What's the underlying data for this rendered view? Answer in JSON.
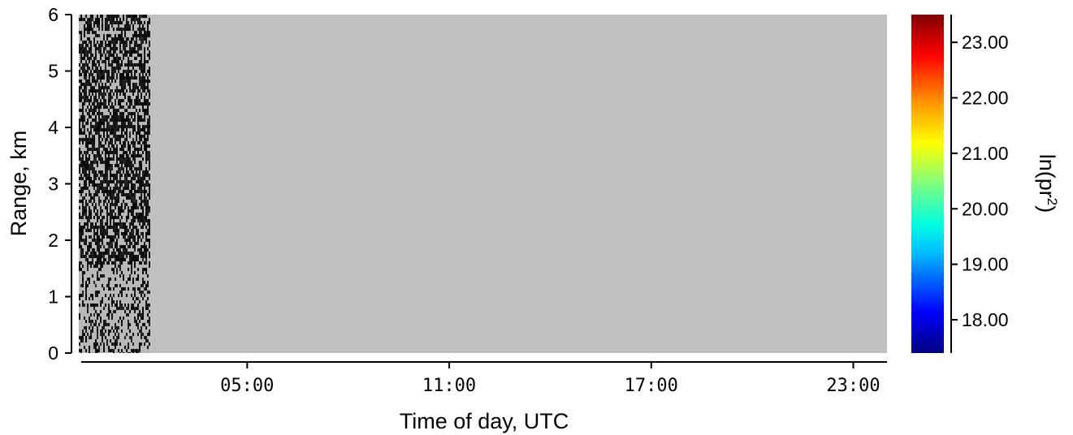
{
  "chart_data": {
    "type": "heatmap",
    "title": "",
    "xlabel": "Time of day, UTC",
    "ylabel": "Range, km",
    "x_axis": {
      "unit": "hours UTC",
      "range": [
        0.0,
        24.0
      ],
      "ticks": [
        {
          "value": 5,
          "label": "05:00"
        },
        {
          "value": 11,
          "label": "11:00"
        },
        {
          "value": 17,
          "label": "17:00"
        },
        {
          "value": 23,
          "label": "23:00"
        }
      ]
    },
    "y_axis": {
      "unit": "km",
      "range": [
        0,
        6
      ],
      "ticks": [
        {
          "value": 0,
          "label": "0"
        },
        {
          "value": 1,
          "label": "1"
        },
        {
          "value": 2,
          "label": "2"
        },
        {
          "value": 3,
          "label": "3"
        },
        {
          "value": 4,
          "label": "4"
        },
        {
          "value": 5,
          "label": "5"
        },
        {
          "value": 6,
          "label": "6"
        }
      ]
    },
    "colorbar": {
      "label_main": "ln(pr",
      "label_sup": "2",
      "label_end": ")",
      "colormap": "jet",
      "range": [
        17.4,
        23.5
      ],
      "ticks": [
        {
          "value": 18,
          "label": "18.00"
        },
        {
          "value": 19,
          "label": "19.00"
        },
        {
          "value": 20,
          "label": "20.00"
        },
        {
          "value": 21,
          "label": "21.00"
        },
        {
          "value": 22,
          "label": "22.00"
        },
        {
          "value": 23,
          "label": "23.00"
        }
      ]
    },
    "data_region": {
      "x_start": 0.0,
      "x_end": 2.1,
      "pattern": "noisy black/gray speckle, denser above 1.6 km",
      "dense_above_km": 1.6
    },
    "missing_region": {
      "x_start": 2.1,
      "x_end": 24.0,
      "color": "#c0c0c0"
    },
    "grid": false,
    "legend": "colorbar-right"
  }
}
